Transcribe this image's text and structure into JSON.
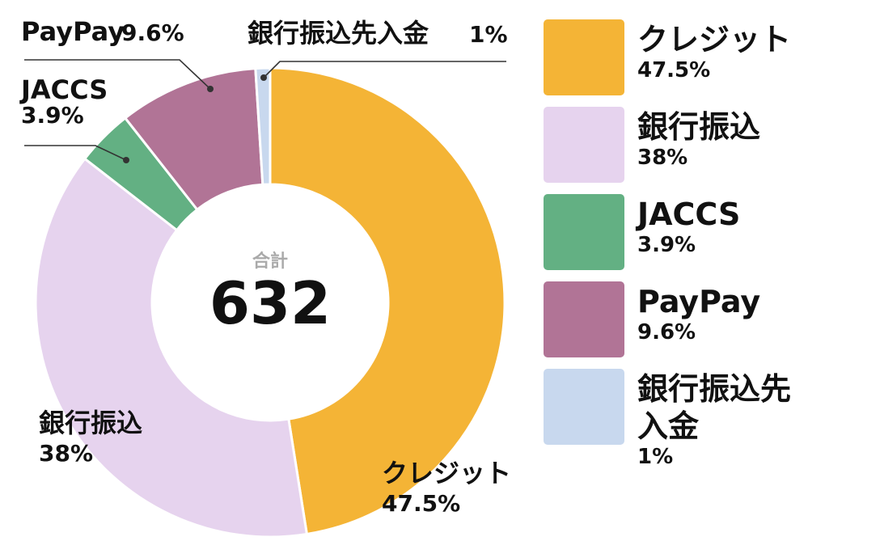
{
  "chart_data": {
    "type": "donut",
    "center": {
      "caption": "合計",
      "value": "632"
    },
    "slices": [
      {
        "name": "クレジット",
        "value": 47.5,
        "label": "47.5%",
        "color": "#F4B436"
      },
      {
        "name": "銀行振込",
        "value": 38,
        "label": "38%",
        "color": "#E6D3EE"
      },
      {
        "name": "JACCS",
        "value": 3.9,
        "label": "3.9%",
        "color": "#63B083"
      },
      {
        "name": "PayPay",
        "value": 9.6,
        "label": "9.6%",
        "color": "#B17496"
      },
      {
        "name": "銀行振込先入金",
        "value": 1,
        "label": "1%",
        "color": "#C8D8EE"
      }
    ],
    "legend": {
      "placement": "right",
      "items": [
        {
          "name": "クレジット",
          "label": "47.5%",
          "color": "#F4B436"
        },
        {
          "name": "銀行振込",
          "label": "38%",
          "color": "#E6D3EE"
        },
        {
          "name": "JACCS",
          "label": "3.9%",
          "color": "#63B083"
        },
        {
          "name": "PayPay",
          "label": "9.6%",
          "color": "#B17496"
        },
        {
          "name": "銀行振込先\n入金",
          "label": "1%",
          "color": "#C8D8EE"
        }
      ]
    },
    "slice_labels": [
      {
        "name": "クレジット",
        "label": "47.5%"
      },
      {
        "name": "銀行振込",
        "label": "38%"
      },
      {
        "name": "JACCS",
        "label": "3.9%"
      },
      {
        "name": "PayPay",
        "label": "9.6%"
      },
      {
        "name": "銀行振込先入金",
        "label": "1%"
      }
    ]
  }
}
